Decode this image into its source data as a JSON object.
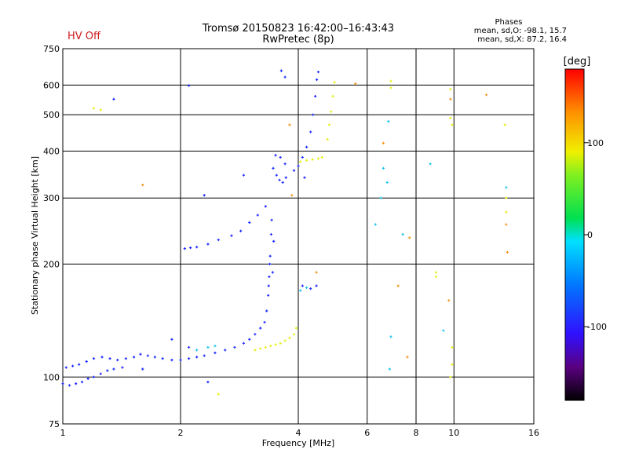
{
  "header": {
    "title_line1": "Tromsø 20150823 16:42:00–16:43:43",
    "title_line2": "RwPretec (8p)",
    "status": "HV Off",
    "phases_heading": "Phases",
    "phases_o": "mean, sd,O: -98.1, 15.7",
    "phases_x": "mean, sd,X:  87.2, 16.4"
  },
  "colorbar": {
    "unit": "[deg]",
    "range": [
      -180,
      180
    ],
    "tick_labels": [
      "100",
      "0",
      "-100"
    ],
    "tick_values": [
      100,
      0,
      -100
    ]
  },
  "colors": {
    "blue": "#1f2cff",
    "yellow": "#e5ef1a",
    "cyan": "#19c4ec",
    "orange": "#f4961e",
    "hv_off": "#cc1a1a"
  },
  "chart_data": {
    "type": "scatter",
    "xlabel": "Frequency [MHz]",
    "ylabel": "Stationary phase Virtual Height [km]",
    "x_scale": "log",
    "y_scale": "log",
    "xlim": [
      1,
      16
    ],
    "ylim": [
      75,
      750
    ],
    "x_ticks": [
      1,
      2,
      4,
      6,
      8,
      10,
      16
    ],
    "y_ticks": [
      75,
      100,
      200,
      300,
      400,
      500,
      600,
      750
    ],
    "grid": true,
    "series": [
      {
        "color_key": "blue",
        "phase_deg": -105,
        "points": [
          [
            1.0,
            96
          ],
          [
            1.04,
            95
          ],
          [
            1.08,
            96
          ],
          [
            1.12,
            97
          ],
          [
            1.16,
            99
          ],
          [
            1.2,
            100
          ],
          [
            1.25,
            102
          ],
          [
            1.3,
            104
          ],
          [
            1.35,
            105
          ],
          [
            1.42,
            106
          ],
          [
            1.02,
            106
          ],
          [
            1.06,
            107
          ],
          [
            1.1,
            108
          ],
          [
            1.15,
            110
          ],
          [
            1.2,
            112
          ],
          [
            1.26,
            113
          ],
          [
            1.32,
            112
          ],
          [
            1.38,
            111
          ],
          [
            1.45,
            112
          ],
          [
            1.52,
            113
          ],
          [
            1.58,
            115
          ],
          [
            1.65,
            114
          ],
          [
            1.72,
            113
          ],
          [
            1.8,
            112
          ],
          [
            1.9,
            111
          ],
          [
            2.0,
            111
          ],
          [
            2.1,
            112
          ],
          [
            2.2,
            113
          ],
          [
            2.3,
            114
          ],
          [
            2.45,
            116
          ],
          [
            2.6,
            118
          ],
          [
            2.75,
            120
          ],
          [
            2.9,
            123
          ],
          [
            3.0,
            126
          ],
          [
            3.1,
            130
          ],
          [
            3.2,
            135
          ],
          [
            3.28,
            140
          ],
          [
            3.32,
            150
          ],
          [
            3.35,
            165
          ],
          [
            3.37,
            185
          ],
          [
            3.39,
            210
          ],
          [
            3.41,
            240
          ],
          [
            3.42,
            262
          ],
          [
            3.38,
            200
          ],
          [
            3.44,
            190
          ],
          [
            3.46,
            230
          ],
          [
            3.36,
            175
          ],
          [
            2.05,
            220
          ],
          [
            2.12,
            221
          ],
          [
            2.2,
            222
          ],
          [
            2.35,
            226
          ],
          [
            2.5,
            232
          ],
          [
            2.7,
            238
          ],
          [
            2.85,
            245
          ],
          [
            3.0,
            258
          ],
          [
            3.15,
            270
          ],
          [
            3.3,
            285
          ],
          [
            3.45,
            360
          ],
          [
            3.52,
            345
          ],
          [
            3.58,
            335
          ],
          [
            3.65,
            330
          ],
          [
            3.72,
            340
          ],
          [
            3.5,
            390
          ],
          [
            3.6,
            385
          ],
          [
            3.7,
            370
          ],
          [
            3.9,
            355
          ],
          [
            4.0,
            365
          ],
          [
            4.1,
            385
          ],
          [
            4.2,
            410
          ],
          [
            4.3,
            450
          ],
          [
            4.36,
            500
          ],
          [
            4.42,
            560
          ],
          [
            4.46,
            620
          ],
          [
            4.5,
            650
          ],
          [
            4.1,
            175
          ],
          [
            4.3,
            172
          ],
          [
            4.45,
            175
          ],
          [
            3.62,
            655
          ],
          [
            3.7,
            630
          ],
          [
            2.1,
            598
          ],
          [
            1.35,
            550
          ],
          [
            2.9,
            345
          ],
          [
            2.3,
            305
          ],
          [
            4.15,
            340
          ],
          [
            1.9,
            126
          ],
          [
            2.1,
            120
          ],
          [
            1.6,
            105
          ],
          [
            2.35,
            97
          ]
        ]
      },
      {
        "color_key": "yellow",
        "phase_deg": 100,
        "points": [
          [
            3.1,
            118
          ],
          [
            3.2,
            119
          ],
          [
            3.3,
            120
          ],
          [
            3.4,
            121
          ],
          [
            3.5,
            122
          ],
          [
            3.6,
            123
          ],
          [
            3.7,
            125
          ],
          [
            3.8,
            127
          ],
          [
            3.9,
            130
          ],
          [
            3.95,
            135
          ],
          [
            4.05,
            375
          ],
          [
            4.2,
            378
          ],
          [
            4.35,
            380
          ],
          [
            4.5,
            382
          ],
          [
            4.6,
            385
          ],
          [
            4.75,
            430
          ],
          [
            4.8,
            470
          ],
          [
            4.85,
            510
          ],
          [
            4.9,
            560
          ],
          [
            4.95,
            610
          ],
          [
            1.2,
            520
          ],
          [
            1.25,
            515
          ],
          [
            6.9,
            615
          ],
          [
            6.9,
            590
          ],
          [
            9.8,
            585
          ],
          [
            9.8,
            490
          ],
          [
            9.9,
            470
          ],
          [
            9.9,
            120
          ],
          [
            9.9,
            108
          ],
          [
            9.8,
            100
          ],
          [
            13.5,
            470
          ],
          [
            13.6,
            300
          ],
          [
            13.6,
            275
          ],
          [
            9.0,
            190
          ],
          [
            9.0,
            185
          ],
          [
            2.5,
            90
          ]
        ]
      },
      {
        "color_key": "cyan",
        "phase_deg": -30,
        "points": [
          [
            2.2,
            118
          ],
          [
            2.35,
            120
          ],
          [
            2.45,
            121
          ],
          [
            4.05,
            170
          ],
          [
            4.2,
            173
          ],
          [
            6.3,
            255
          ],
          [
            6.6,
            360
          ],
          [
            6.75,
            330
          ],
          [
            6.8,
            480
          ],
          [
            6.85,
            105
          ],
          [
            6.9,
            128
          ],
          [
            7.4,
            240
          ],
          [
            8.7,
            370
          ],
          [
            9.4,
            133
          ],
          [
            13.6,
            320
          ],
          [
            6.5,
            300
          ]
        ]
      },
      {
        "color_key": "orange",
        "phase_deg": 150,
        "points": [
          [
            1.6,
            325
          ],
          [
            3.8,
            470
          ],
          [
            4.45,
            190
          ],
          [
            5.6,
            605
          ],
          [
            6.6,
            420
          ],
          [
            7.2,
            175
          ],
          [
            7.6,
            113
          ],
          [
            7.7,
            235
          ],
          [
            9.7,
            160
          ],
          [
            9.8,
            550
          ],
          [
            12.1,
            565
          ],
          [
            13.6,
            255
          ],
          [
            13.7,
            215
          ],
          [
            3.85,
            305
          ]
        ]
      }
    ]
  }
}
